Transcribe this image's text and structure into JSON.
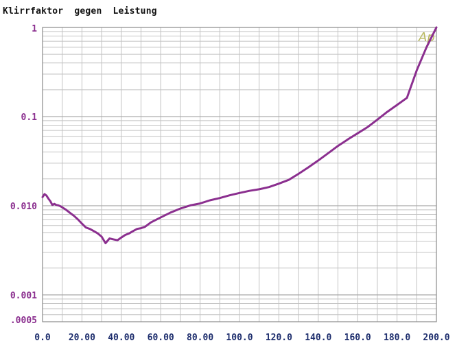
{
  "chart_data": {
    "type": "line",
    "title": "Klirrfaktor  gegen  Leistung",
    "xlabel": "",
    "ylabel": "",
    "xlim": [
      0,
      200
    ],
    "ylim": [
      0.0005,
      1
    ],
    "y_scale": "log",
    "grid": true,
    "x_ticks": [
      0,
      20,
      40,
      60,
      80,
      100,
      120,
      140,
      160,
      180,
      200
    ],
    "x_tick_labels": [
      "0.0",
      "20.00",
      "40.00",
      "60.00",
      "80.00",
      "100.0",
      "120.0",
      "140.0",
      "160.0",
      "180.0",
      "200.0"
    ],
    "y_ticks": [
      1,
      0.1,
      0.01,
      0.001,
      0.0005
    ],
    "y_tick_labels": [
      "1",
      "0.1",
      "0.010",
      "0.001",
      ".0005"
    ],
    "watermark": "Ap",
    "colors": {
      "line": "#8b2f8f",
      "tick_labels_x": "#1f2f6e",
      "tick_labels_y": "#8b2f8f",
      "grid": "#c2c2c2",
      "frame": "#8a8a8a",
      "watermark": "#b8b860"
    },
    "series": [
      {
        "x": [
          0,
          1,
          2,
          3,
          4,
          5,
          6,
          7,
          8,
          9,
          10,
          12,
          14,
          16,
          18,
          20,
          22,
          24,
          26,
          28,
          30,
          32,
          34,
          36,
          38,
          40,
          42,
          44,
          46,
          48,
          50,
          52,
          55,
          60,
          65,
          70,
          75,
          80,
          85,
          90,
          95,
          100,
          105,
          110,
          115,
          120,
          125,
          130,
          135,
          140,
          145,
          150,
          155,
          160,
          165,
          170,
          175,
          180,
          185,
          190,
          195,
          200
        ],
        "y": [
          0.0125,
          0.0135,
          0.013,
          0.012,
          0.0112,
          0.0102,
          0.0105,
          0.0102,
          0.0101,
          0.0099,
          0.0096,
          0.009,
          0.0083,
          0.0077,
          0.007,
          0.0063,
          0.0057,
          0.0055,
          0.0052,
          0.0049,
          0.0045,
          0.0038,
          0.0043,
          0.0042,
          0.0041,
          0.0044,
          0.0047,
          0.0049,
          0.0052,
          0.0055,
          0.0056,
          0.0058,
          0.0065,
          0.0074,
          0.0084,
          0.0093,
          0.0101,
          0.0106,
          0.0115,
          0.0122,
          0.0131,
          0.0139,
          0.0147,
          0.0153,
          0.0162,
          0.0177,
          0.0195,
          0.0228,
          0.027,
          0.0322,
          0.0388,
          0.0469,
          0.0555,
          0.065,
          0.076,
          0.0925,
          0.113,
          0.135,
          0.162,
          0.33,
          0.6,
          1.05
        ]
      }
    ]
  }
}
